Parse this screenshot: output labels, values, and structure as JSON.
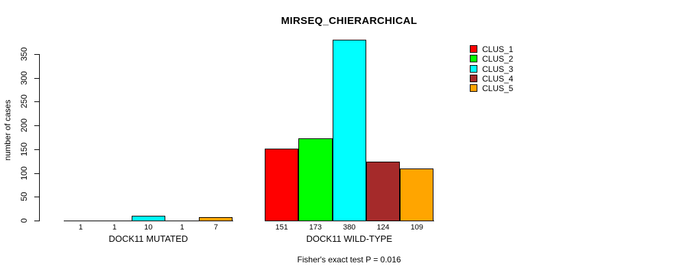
{
  "title": "MIRSEQ_CHIERARCHICAL",
  "footer": "Fisher's exact test P = 0.016",
  "chart_data": {
    "type": "bar",
    "title": "MIRSEQ_CHIERARCHICAL",
    "xlabel": "",
    "ylabel": "number of cases",
    "categories": [
      "DOCK11 MUTATED",
      "DOCK11 WILD-TYPE"
    ],
    "series": [
      {
        "name": "CLUS_1",
        "color": "#FF0000",
        "values": [
          1,
          151
        ]
      },
      {
        "name": "CLUS_2",
        "color": "#00FF00",
        "values": [
          1,
          173
        ]
      },
      {
        "name": "CLUS_3",
        "color": "#00FFFF",
        "values": [
          10,
          380
        ]
      },
      {
        "name": "CLUS_4",
        "color": "#A52A2A",
        "values": [
          1,
          124
        ]
      },
      {
        "name": "CLUS_5",
        "color": "#FFA500",
        "values": [
          7,
          109
        ]
      }
    ],
    "bar_value_labels": [
      [
        "1",
        "1",
        "10",
        "1",
        "7"
      ],
      [
        "151",
        "173",
        "380",
        "124",
        "109"
      ]
    ],
    "yticks": [
      0,
      50,
      100,
      150,
      200,
      250,
      300,
      350
    ],
    "ylim": [
      0,
      380
    ],
    "grid": false,
    "legend_position": "top-right",
    "annotation": "Fisher's exact test P = 0.016"
  }
}
